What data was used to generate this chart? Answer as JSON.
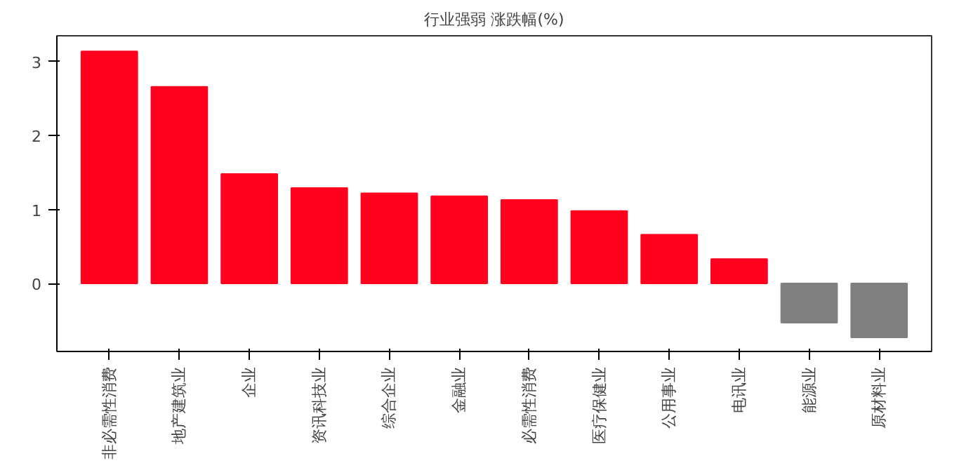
{
  "chart_data": {
    "type": "bar",
    "title": "行业强弱 涨跌幅(%)",
    "categories": [
      "非必需性消费",
      "地产建筑业",
      "企业",
      "资讯科技业",
      "综合企业",
      "金融业",
      "必需性消费",
      "医疗保健业",
      "公用事业",
      "电讯业",
      "能源业",
      "原材料业"
    ],
    "values": [
      3.14,
      2.66,
      1.48,
      1.29,
      1.22,
      1.18,
      1.13,
      0.98,
      0.66,
      0.33,
      -0.53,
      -0.73
    ],
    "colors": [
      "#ff001e",
      "#ff001e",
      "#ff001e",
      "#ff001e",
      "#ff001e",
      "#ff001e",
      "#ff001e",
      "#ff001e",
      "#ff001e",
      "#ff001e",
      "#808080",
      "#808080"
    ],
    "ylim": [
      -0.92,
      3.35
    ],
    "yticks": [
      0,
      1,
      2,
      3
    ],
    "grid": false
  }
}
